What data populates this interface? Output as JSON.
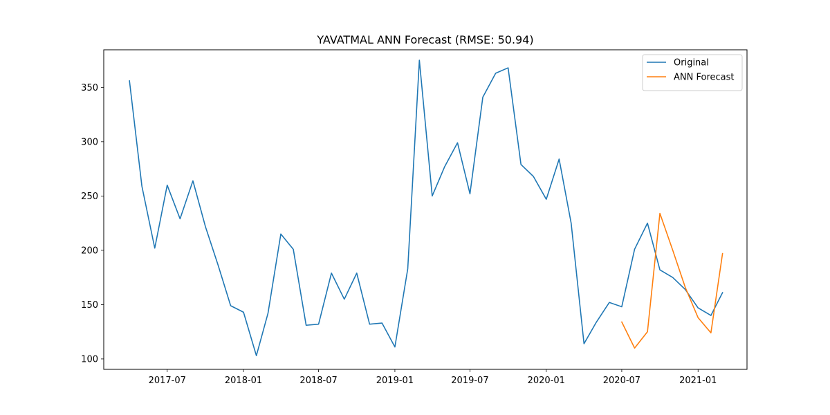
{
  "chart_data": {
    "type": "line",
    "title": "YAVATMAL ANN Forecast (RMSE: 50.94)",
    "xlabel": "",
    "ylabel": "",
    "x_tick_labels": [
      "2017-07",
      "2018-01",
      "2018-07",
      "2019-01",
      "2019-07",
      "2020-01",
      "2020-07",
      "2021-01"
    ],
    "y_ticks": [
      100,
      150,
      200,
      250,
      300,
      350
    ],
    "xlim": [
      "2017-01-29",
      "2021-04-29"
    ],
    "ylim": [
      90.4,
      384.6
    ],
    "grid": false,
    "legend_position": "top-right",
    "series": [
      {
        "name": "Original",
        "color": "#1f77b4",
        "points": [
          [
            "2017-04-01",
            356
          ],
          [
            "2017-05-01",
            259
          ],
          [
            "2017-06-01",
            202
          ],
          [
            "2017-07-01",
            260
          ],
          [
            "2017-08-01",
            229
          ],
          [
            "2017-09-01",
            264
          ],
          [
            "2017-10-01",
            222
          ],
          [
            "2017-11-01",
            186
          ],
          [
            "2017-12-01",
            149
          ],
          [
            "2018-01-01",
            143
          ],
          [
            "2018-02-01",
            103
          ],
          [
            "2018-03-01",
            142
          ],
          [
            "2018-04-01",
            215
          ],
          [
            "2018-05-01",
            201
          ],
          [
            "2018-06-01",
            131
          ],
          [
            "2018-07-01",
            132
          ],
          [
            "2018-08-01",
            179
          ],
          [
            "2018-09-01",
            155
          ],
          [
            "2018-10-01",
            179
          ],
          [
            "2018-11-01",
            132
          ],
          [
            "2018-12-01",
            133
          ],
          [
            "2019-01-01",
            111
          ],
          [
            "2019-02-01",
            183
          ],
          [
            "2019-03-01",
            375
          ],
          [
            "2019-04-01",
            250
          ],
          [
            "2019-05-01",
            277
          ],
          [
            "2019-06-01",
            299
          ],
          [
            "2019-07-01",
            252
          ],
          [
            "2019-08-01",
            341
          ],
          [
            "2019-09-01",
            363
          ],
          [
            "2019-10-01",
            368
          ],
          [
            "2019-11-01",
            279
          ],
          [
            "2019-12-01",
            268
          ],
          [
            "2020-01-01",
            247
          ],
          [
            "2020-02-01",
            284
          ],
          [
            "2020-03-01",
            225
          ],
          [
            "2020-04-01",
            114
          ],
          [
            "2020-05-01",
            134
          ],
          [
            "2020-06-01",
            152
          ],
          [
            "2020-07-01",
            148
          ],
          [
            "2020-08-01",
            201
          ],
          [
            "2020-09-01",
            225
          ],
          [
            "2020-10-01",
            182
          ],
          [
            "2020-11-01",
            175
          ],
          [
            "2020-12-01",
            164
          ],
          [
            "2021-01-01",
            147
          ],
          [
            "2021-02-01",
            140
          ],
          [
            "2021-03-01",
            161
          ]
        ]
      },
      {
        "name": "ANN Forecast",
        "color": "#ff7f0e",
        "points": [
          [
            "2020-07-01",
            134
          ],
          [
            "2020-08-01",
            110
          ],
          [
            "2020-09-01",
            125
          ],
          [
            "2020-10-01",
            234
          ],
          [
            "2020-11-01",
            200
          ],
          [
            "2020-12-01",
            166
          ],
          [
            "2021-01-01",
            138
          ],
          [
            "2021-02-01",
            124
          ],
          [
            "2021-03-01",
            197
          ]
        ]
      }
    ]
  }
}
